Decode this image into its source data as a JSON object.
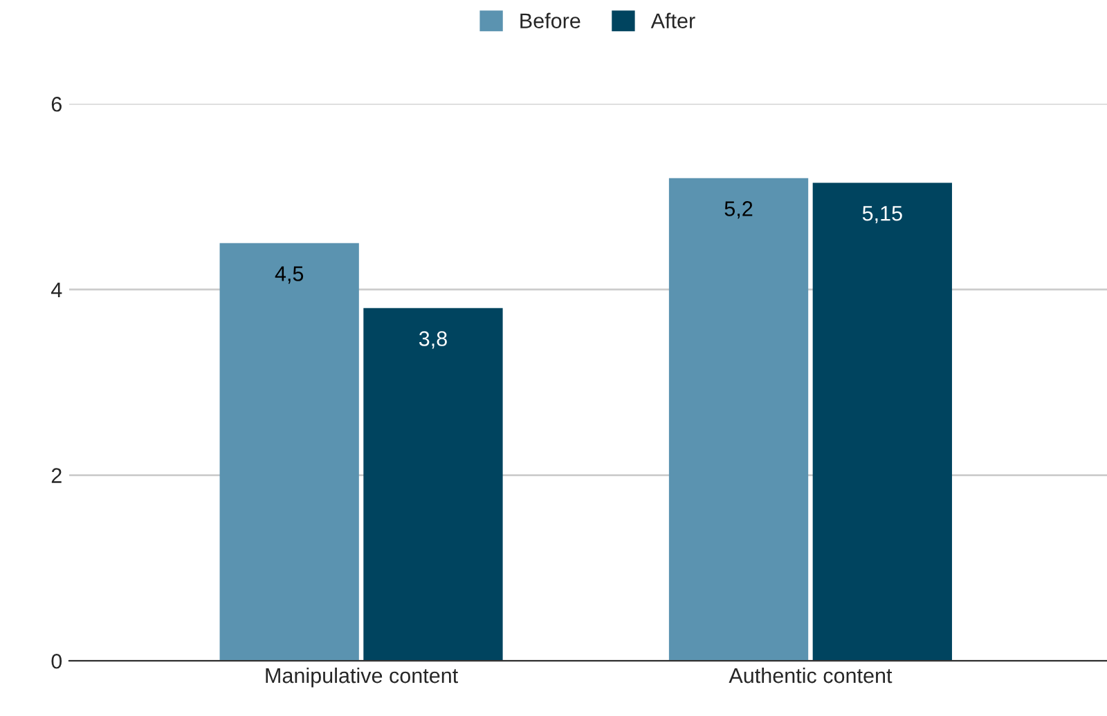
{
  "chart_data": {
    "type": "bar",
    "categories": [
      "Manipulative content",
      "Authentic content"
    ],
    "series": [
      {
        "name": "Before",
        "color": "#5b93b0",
        "values": [
          4.5,
          5.2
        ],
        "value_labels": [
          "4,5",
          "5,2"
        ]
      },
      {
        "name": "After",
        "color": "#00445f",
        "values": [
          3.8,
          5.15
        ],
        "value_labels": [
          "3,8",
          "5,15"
        ]
      }
    ],
    "ylim": [
      0,
      6
    ],
    "yticks": [
      0,
      2,
      4,
      6
    ],
    "grid": "y",
    "legend": "top"
  }
}
